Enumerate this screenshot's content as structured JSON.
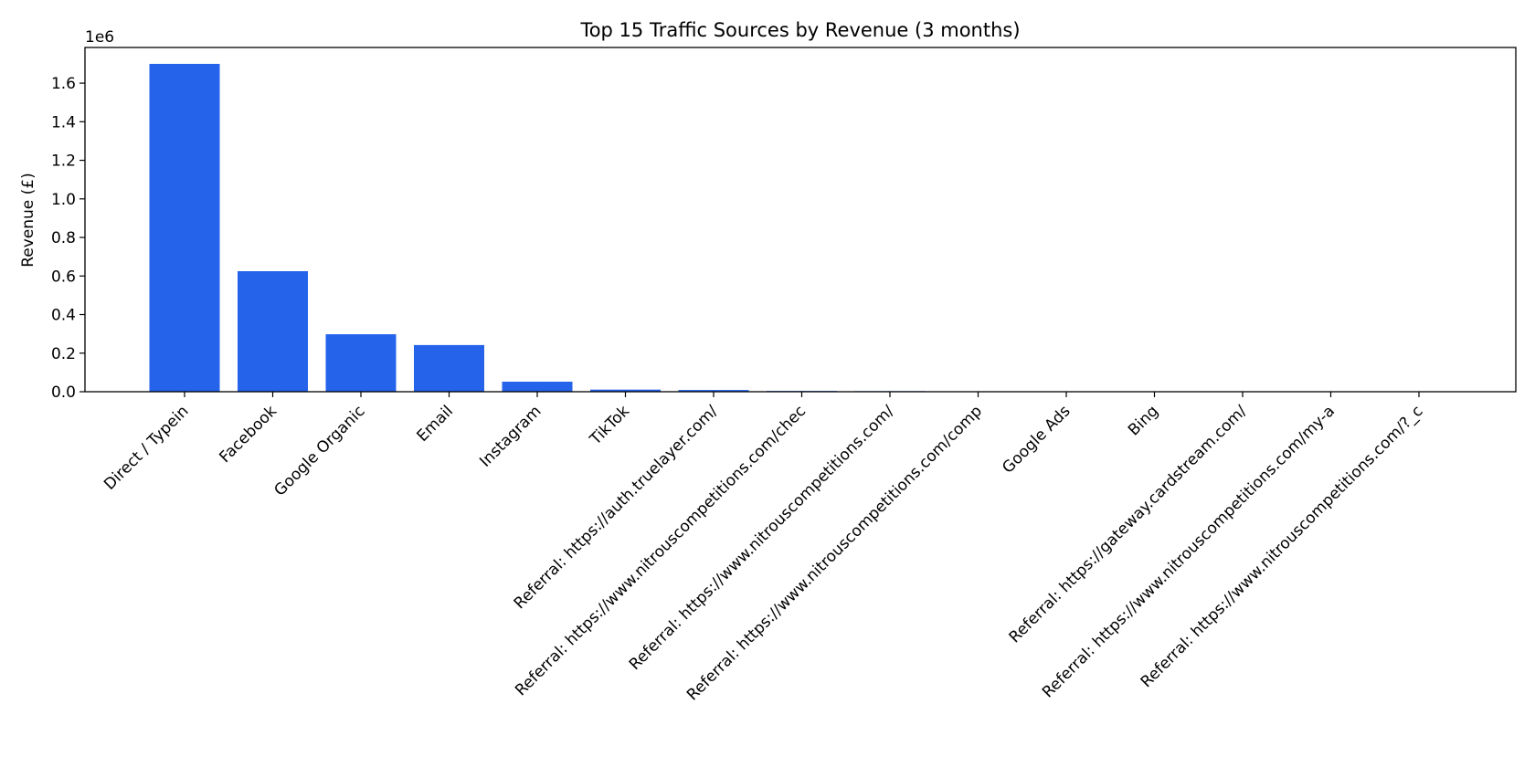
{
  "chart_data": {
    "type": "bar",
    "title": "Top 15 Traffic Sources by Revenue (3 months)",
    "xlabel": "",
    "ylabel": "Revenue (£)",
    "y_multiplier": "1e6",
    "ylim": [
      0,
      1.785
    ],
    "yticks": [
      "0.0",
      "0.2",
      "0.4",
      "0.6",
      "0.8",
      "1.0",
      "1.2",
      "1.4",
      "1.6"
    ],
    "grid": false,
    "legend": "none",
    "bar_color": "#2563eb",
    "categories": [
      "Direct / Typein",
      "Facebook",
      "Google Organic",
      "Email",
      "Instagram",
      "TikTok",
      "Referral: https://auth.truelayer.com/",
      "Referral: https://www.nitrouscompetitions.com/chec",
      "Referral: https://www.nitrouscompetitions.com/",
      "Referral: https://www.nitrouscompetitions.com/comp",
      "Google Ads",
      "Bing",
      "Referral: https://gateway.cardstream.com/",
      "Referral: https://www.nitrouscompetitions.com/my-a",
      "Referral: https://www.nitrouscompetitions.com/?_c"
    ],
    "values": [
      1.7,
      0.625,
      0.298,
      0.242,
      0.052,
      0.011,
      0.009,
      0.004,
      0.003,
      0.002,
      0.0015,
      0.001,
      0.0008,
      0.0006,
      0.0004
    ]
  }
}
